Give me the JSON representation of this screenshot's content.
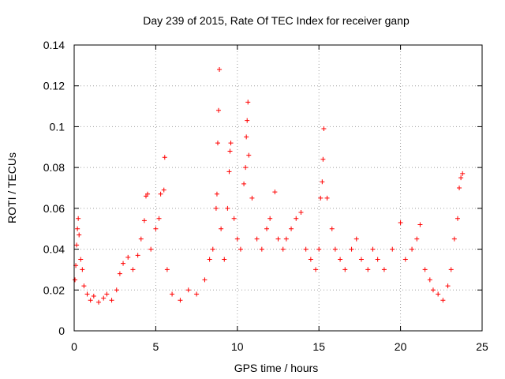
{
  "chart_data": {
    "type": "scatter",
    "title": "Day 239 of 2015, Rate Of TEC Index for receiver ganp",
    "xlabel": "GPS time / hours",
    "ylabel": "ROTI / TECUs",
    "xlim": [
      0,
      25
    ],
    "ylim": [
      0,
      0.14
    ],
    "x_ticks": [
      0,
      5,
      10,
      15,
      20,
      25
    ],
    "x_tick_labels": [
      "0",
      "5",
      "10",
      "15",
      "20",
      "25"
    ],
    "y_ticks": [
      0,
      0.02,
      0.04,
      0.06,
      0.08,
      0.1,
      0.12,
      0.14
    ],
    "y_tick_labels": [
      "0",
      "0.02",
      "0.04",
      "0.06",
      "0.08",
      "0.1",
      "0.12",
      "0.14"
    ],
    "grid": true,
    "marker": "+",
    "color": "#ff0000",
    "series": [
      {
        "name": "ROTI",
        "points": [
          [
            0.05,
            0.025
          ],
          [
            0.1,
            0.032
          ],
          [
            0.15,
            0.042
          ],
          [
            0.2,
            0.05
          ],
          [
            0.25,
            0.055
          ],
          [
            0.3,
            0.047
          ],
          [
            0.4,
            0.035
          ],
          [
            0.5,
            0.03
          ],
          [
            0.6,
            0.022
          ],
          [
            0.8,
            0.018
          ],
          [
            1.0,
            0.015
          ],
          [
            1.2,
            0.017
          ],
          [
            1.5,
            0.014
          ],
          [
            1.8,
            0.016
          ],
          [
            2.0,
            0.018
          ],
          [
            2.3,
            0.015
          ],
          [
            2.6,
            0.02
          ],
          [
            2.8,
            0.028
          ],
          [
            3.0,
            0.033
          ],
          [
            3.3,
            0.036
          ],
          [
            3.6,
            0.03
          ],
          [
            3.9,
            0.037
          ],
          [
            4.1,
            0.045
          ],
          [
            4.3,
            0.054
          ],
          [
            4.4,
            0.066
          ],
          [
            4.5,
            0.067
          ],
          [
            4.7,
            0.04
          ],
          [
            5.0,
            0.05
          ],
          [
            5.2,
            0.055
          ],
          [
            5.3,
            0.067
          ],
          [
            5.5,
            0.069
          ],
          [
            5.55,
            0.085
          ],
          [
            5.7,
            0.03
          ],
          [
            6.0,
            0.018
          ],
          [
            6.5,
            0.015
          ],
          [
            7.0,
            0.02
          ],
          [
            7.5,
            0.018
          ],
          [
            8.0,
            0.025
          ],
          [
            8.3,
            0.035
          ],
          [
            8.5,
            0.04
          ],
          [
            8.7,
            0.06
          ],
          [
            8.75,
            0.067
          ],
          [
            8.8,
            0.092
          ],
          [
            8.85,
            0.108
          ],
          [
            8.9,
            0.128
          ],
          [
            9.0,
            0.05
          ],
          [
            9.2,
            0.035
          ],
          [
            9.4,
            0.06
          ],
          [
            9.5,
            0.078
          ],
          [
            9.55,
            0.088
          ],
          [
            9.6,
            0.092
          ],
          [
            9.8,
            0.055
          ],
          [
            10.0,
            0.045
          ],
          [
            10.2,
            0.04
          ],
          [
            10.4,
            0.072
          ],
          [
            10.5,
            0.08
          ],
          [
            10.55,
            0.095
          ],
          [
            10.6,
            0.103
          ],
          [
            10.65,
            0.112
          ],
          [
            10.7,
            0.086
          ],
          [
            10.9,
            0.065
          ],
          [
            11.2,
            0.045
          ],
          [
            11.5,
            0.04
          ],
          [
            11.8,
            0.05
          ],
          [
            12.0,
            0.055
          ],
          [
            12.3,
            0.068
          ],
          [
            12.5,
            0.045
          ],
          [
            12.8,
            0.04
          ],
          [
            13.0,
            0.045
          ],
          [
            13.3,
            0.05
          ],
          [
            13.6,
            0.055
          ],
          [
            13.9,
            0.058
          ],
          [
            14.2,
            0.04
          ],
          [
            14.5,
            0.035
          ],
          [
            14.8,
            0.03
          ],
          [
            15.0,
            0.04
          ],
          [
            15.1,
            0.065
          ],
          [
            15.2,
            0.073
          ],
          [
            15.25,
            0.084
          ],
          [
            15.3,
            0.099
          ],
          [
            15.5,
            0.065
          ],
          [
            15.8,
            0.05
          ],
          [
            16.0,
            0.04
          ],
          [
            16.3,
            0.035
          ],
          [
            16.6,
            0.03
          ],
          [
            17.0,
            0.04
          ],
          [
            17.3,
            0.045
          ],
          [
            17.6,
            0.035
          ],
          [
            18.0,
            0.03
          ],
          [
            18.3,
            0.04
          ],
          [
            18.6,
            0.035
          ],
          [
            19.0,
            0.03
          ],
          [
            19.5,
            0.04
          ],
          [
            20.0,
            0.053
          ],
          [
            20.3,
            0.035
          ],
          [
            20.7,
            0.04
          ],
          [
            21.0,
            0.045
          ],
          [
            21.2,
            0.052
          ],
          [
            21.5,
            0.03
          ],
          [
            21.8,
            0.025
          ],
          [
            22.0,
            0.02
          ],
          [
            22.3,
            0.018
          ],
          [
            22.6,
            0.015
          ],
          [
            22.9,
            0.022
          ],
          [
            23.1,
            0.03
          ],
          [
            23.3,
            0.045
          ],
          [
            23.5,
            0.055
          ],
          [
            23.6,
            0.07
          ],
          [
            23.7,
            0.075
          ],
          [
            23.8,
            0.077
          ]
        ]
      }
    ]
  }
}
